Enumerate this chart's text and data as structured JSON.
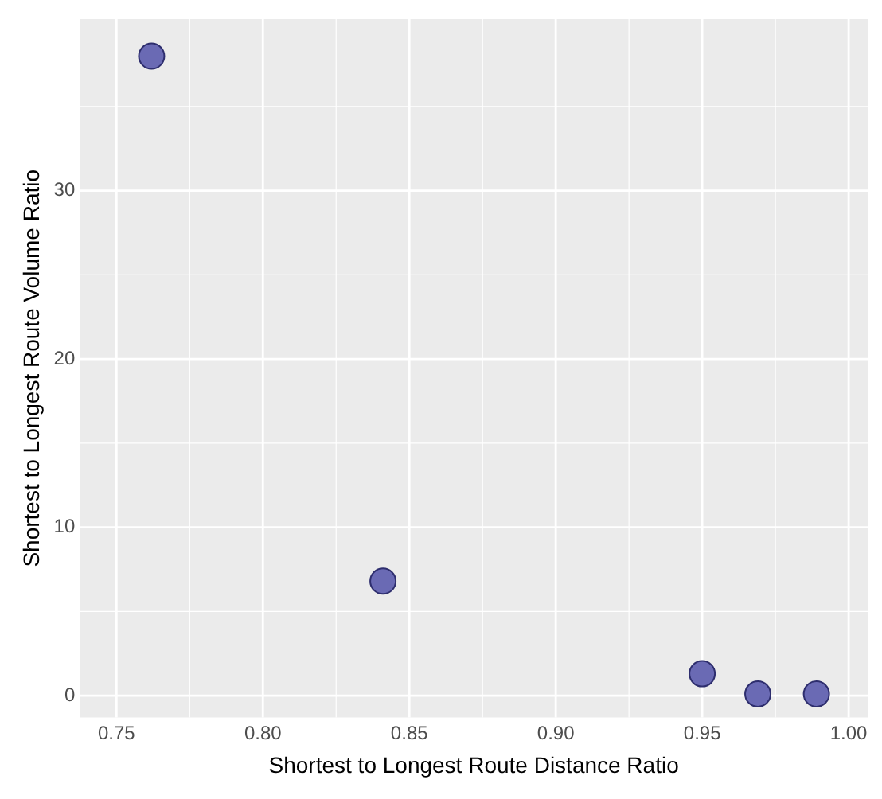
{
  "chart_data": {
    "type": "scatter",
    "xlabel": "Shortest to Longest Route Distance Ratio",
    "ylabel": "Shortest to Longest Route Volume Ratio",
    "x": [
      0.762,
      0.841,
      0.95,
      0.969,
      0.989
    ],
    "series": [
      {
        "color": "#6a6ab4",
        "values": [
          38.0,
          6.8,
          1.3,
          0.1,
          0.1
        ]
      }
    ],
    "xlim": [
      0.7375,
      1.0065
    ],
    "ylim": [
      -1.3,
      40.2
    ],
    "xticks": [
      0.75,
      {
        "value": 0.775,
        "label": null
      },
      {
        "value": 0.8,
        "label": "0.80"
      },
      {
        "value": 0.825,
        "label": null
      },
      0.85,
      {
        "value": 0.875,
        "label": null
      },
      {
        "value": 0.9,
        "label": "0.90"
      },
      {
        "value": 0.925,
        "label": null
      },
      0.95,
      {
        "value": 0.975,
        "label": null
      },
      {
        "value": 1.0,
        "label": "1.00"
      }
    ],
    "yticks": [
      0,
      {
        "value": 5,
        "label": null
      },
      10,
      {
        "value": 15,
        "label": null
      },
      20,
      {
        "value": 25,
        "label": null
      },
      30,
      {
        "value": 35,
        "label": null
      }
    ],
    "grid": true,
    "marker": "circle",
    "legend": false
  }
}
